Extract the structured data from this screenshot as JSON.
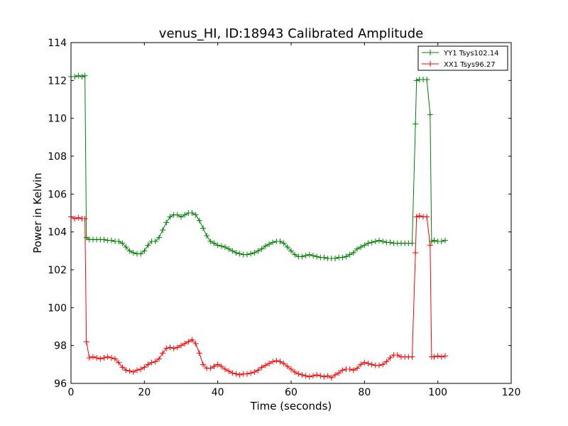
{
  "chart_data": {
    "type": "line",
    "title": "venus_HI, ID:18943 Calibrated Amplitude",
    "xlabel": "Time (seconds)",
    "ylabel": "Power in Kelvin",
    "xlim": [
      0,
      120
    ],
    "ylim": [
      96,
      114
    ],
    "xticks": [
      0,
      20,
      40,
      60,
      80,
      100,
      120
    ],
    "yticks": [
      96,
      98,
      100,
      102,
      104,
      106,
      108,
      110,
      112,
      114
    ],
    "grid": false,
    "legend_position": "top-right",
    "marker": "plus",
    "series": [
      {
        "name": "YY1 Tsys102.14",
        "color": "#008000",
        "x": [
          0,
          1,
          2,
          3,
          3.8,
          4.2,
          5,
          6,
          7,
          8,
          9,
          10,
          11,
          12,
          13,
          14,
          15,
          16,
          17,
          18,
          19,
          20,
          21,
          22,
          23,
          24,
          25,
          26,
          27,
          28,
          29,
          30,
          31,
          32,
          33,
          34,
          35,
          36,
          37,
          38,
          39,
          40,
          41,
          42,
          43,
          44,
          45,
          46,
          47,
          48,
          49,
          50,
          51,
          52,
          53,
          54,
          55,
          56,
          57,
          58,
          59,
          60,
          61,
          62,
          63,
          64,
          65,
          66,
          67,
          68,
          69,
          70,
          71,
          72,
          73,
          74,
          75,
          76,
          77,
          78,
          79,
          80,
          81,
          82,
          83,
          84,
          85,
          86,
          87,
          88,
          89,
          90,
          91,
          92,
          93,
          93.9,
          94.2,
          95,
          96,
          97,
          97.9,
          98.3,
          99,
          100,
          101,
          102
        ],
        "y": [
          112.2,
          112.2,
          112.25,
          112.2,
          112.25,
          103.7,
          103.6,
          103.6,
          103.6,
          103.6,
          103.6,
          103.55,
          103.55,
          103.5,
          103.5,
          103.4,
          103.2,
          103.0,
          102.9,
          102.85,
          102.85,
          103.0,
          103.3,
          103.5,
          103.5,
          103.7,
          104.1,
          104.5,
          104.8,
          104.9,
          104.9,
          104.8,
          104.9,
          105.0,
          105.0,
          104.9,
          104.6,
          104.2,
          103.8,
          103.5,
          103.4,
          103.3,
          103.25,
          103.2,
          103.1,
          103.0,
          102.9,
          102.85,
          102.8,
          102.8,
          102.85,
          102.9,
          103.0,
          103.1,
          103.25,
          103.35,
          103.45,
          103.5,
          103.5,
          103.4,
          103.2,
          103.0,
          102.8,
          102.7,
          102.7,
          102.75,
          102.8,
          102.75,
          102.7,
          102.65,
          102.65,
          102.6,
          102.6,
          102.6,
          102.65,
          102.65,
          102.7,
          102.8,
          102.9,
          103.1,
          103.2,
          103.3,
          103.4,
          103.45,
          103.5,
          103.55,
          103.5,
          103.45,
          103.45,
          103.4,
          103.4,
          103.4,
          103.4,
          103.4,
          103.4,
          109.7,
          112.0,
          112.05,
          112.05,
          112.05,
          110.2,
          103.5,
          103.55,
          103.5,
          103.5,
          103.55
        ],
        "cap_x": [
          2.8,
          3.8,
          8.0,
          5.6
        ]
      },
      {
        "name": "XX1 Tsys96.27",
        "color": "#ff0000",
        "x": [
          0,
          1,
          2,
          3,
          3.8,
          4.2,
          5,
          6,
          7,
          8,
          9,
          10,
          11,
          12,
          13,
          14,
          15,
          16,
          17,
          18,
          19,
          20,
          21,
          22,
          23,
          24,
          25,
          26,
          27,
          28,
          29,
          30,
          31,
          32,
          33,
          34,
          35,
          36,
          37,
          38,
          39,
          40,
          41,
          42,
          43,
          44,
          45,
          46,
          47,
          48,
          49,
          50,
          51,
          52,
          53,
          54,
          55,
          56,
          57,
          58,
          59,
          60,
          61,
          62,
          63,
          64,
          65,
          66,
          67,
          68,
          69,
          70,
          71,
          72,
          73,
          74,
          75,
          76,
          77,
          78,
          79,
          80,
          81,
          82,
          83,
          84,
          85,
          86,
          87,
          88,
          89,
          90,
          91,
          92,
          93,
          93.9,
          94.2,
          95,
          96,
          97,
          97.9,
          98.3,
          99,
          100,
          101,
          102
        ],
        "y": [
          104.8,
          104.7,
          104.75,
          104.7,
          104.7,
          98.2,
          97.35,
          97.4,
          97.35,
          97.3,
          97.35,
          97.4,
          97.35,
          97.3,
          97.1,
          96.85,
          96.7,
          96.65,
          96.6,
          96.7,
          96.75,
          96.85,
          97.0,
          97.1,
          97.15,
          97.3,
          97.6,
          97.85,
          97.9,
          97.85,
          97.9,
          98.0,
          98.1,
          98.2,
          98.3,
          98.1,
          97.6,
          97.0,
          96.8,
          96.8,
          96.9,
          97.0,
          96.9,
          96.75,
          96.65,
          96.55,
          96.5,
          96.45,
          96.5,
          96.5,
          96.55,
          96.6,
          96.7,
          96.85,
          96.95,
          97.05,
          97.15,
          97.2,
          97.15,
          97.05,
          96.9,
          96.75,
          96.6,
          96.5,
          96.45,
          96.4,
          96.35,
          96.4,
          96.45,
          96.4,
          96.35,
          96.4,
          96.3,
          96.45,
          96.55,
          96.7,
          96.75,
          96.75,
          96.7,
          96.8,
          97.0,
          97.1,
          97.05,
          97.0,
          96.95,
          96.95,
          97.0,
          97.15,
          97.35,
          97.5,
          97.5,
          97.4,
          97.4,
          97.4,
          97.4,
          102.9,
          104.8,
          104.85,
          104.8,
          104.8,
          103.3,
          97.4,
          97.4,
          97.45,
          97.4,
          97.45
        ]
      }
    ]
  }
}
